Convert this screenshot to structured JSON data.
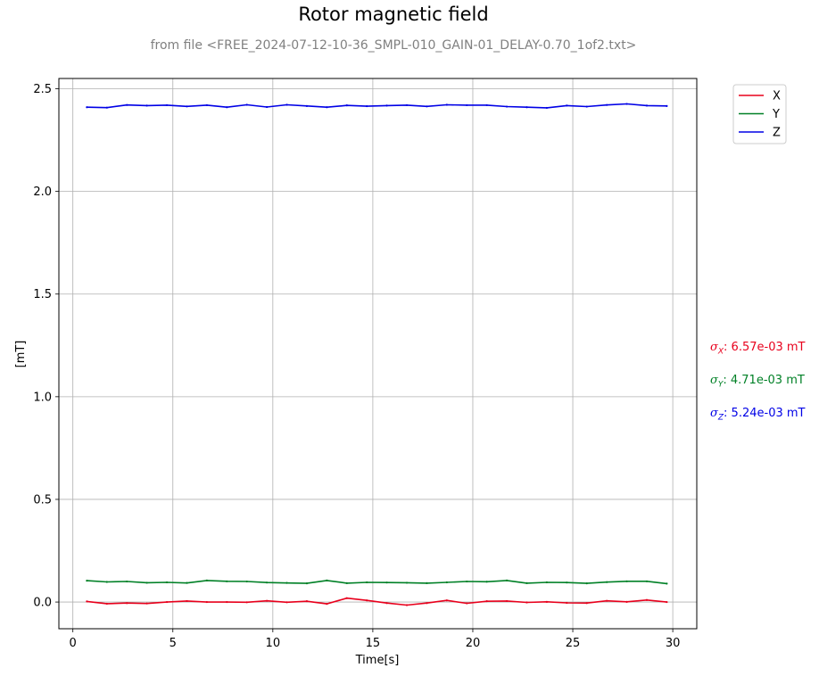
{
  "colors": {
    "X": "#e8001c",
    "Y": "#008026",
    "Z": "#0000e6",
    "grid": "#b0b0b0"
  },
  "chart_data": {
    "type": "line",
    "title": "Rotor magnetic field",
    "subtitle": "from file <FREE_2024-07-12-10-36_SMPL-010_GAIN-01_DELAY-0.70_1of2.txt>",
    "xlabel": "Time[s]",
    "ylabel": "[mT]",
    "xlim": [
      -0.7,
      31.2
    ],
    "ylim": [
      -0.13,
      2.55
    ],
    "xticks": [
      0,
      5,
      10,
      15,
      20,
      25,
      30
    ],
    "xtick_labels": [
      "0",
      "5",
      "10",
      "15",
      "20",
      "25",
      "30"
    ],
    "yticks": [
      0.0,
      0.5,
      1.0,
      1.5,
      2.0,
      2.5
    ],
    "ytick_labels": [
      "0.0",
      "0.5",
      "1.0",
      "1.5",
      "2.0",
      "2.5"
    ],
    "grid": true,
    "legend": "top-right-outside",
    "x": [
      0.7,
      1.7,
      2.7,
      3.7,
      4.7,
      5.7,
      6.7,
      7.7,
      8.7,
      9.7,
      10.7,
      11.7,
      12.7,
      13.7,
      14.7,
      15.7,
      16.7,
      17.7,
      18.7,
      19.7,
      20.7,
      21.7,
      22.7,
      23.7,
      24.7,
      25.7,
      26.7,
      27.7,
      28.7,
      29.7
    ],
    "series": [
      {
        "name": "X",
        "color": "#e8001c",
        "values": [
          0.003,
          -0.008,
          -0.005,
          -0.007,
          0.0,
          0.005,
          0.0,
          0.0,
          -0.001,
          0.006,
          -0.001,
          0.004,
          -0.009,
          0.019,
          0.008,
          -0.005,
          -0.015,
          -0.005,
          0.008,
          -0.006,
          0.004,
          0.005,
          -0.002,
          0.001,
          -0.004,
          -0.005,
          0.006,
          0.001,
          0.01,
          0.0
        ]
      },
      {
        "name": "Y",
        "color": "#008026",
        "values": [
          0.104,
          0.098,
          0.1,
          0.094,
          0.096,
          0.093,
          0.105,
          0.101,
          0.1,
          0.095,
          0.093,
          0.091,
          0.105,
          0.092,
          0.096,
          0.095,
          0.094,
          0.092,
          0.096,
          0.1,
          0.099,
          0.105,
          0.092,
          0.096,
          0.095,
          0.091,
          0.097,
          0.101,
          0.101,
          0.09
        ]
      },
      {
        "name": "Z",
        "color": "#0000e6",
        "values": [
          2.41,
          2.408,
          2.421,
          2.418,
          2.42,
          2.414,
          2.42,
          2.41,
          2.422,
          2.411,
          2.422,
          2.416,
          2.41,
          2.419,
          2.415,
          2.418,
          2.42,
          2.414,
          2.422,
          2.42,
          2.42,
          2.413,
          2.41,
          2.407,
          2.418,
          2.413,
          2.421,
          2.426,
          2.418,
          2.416
        ]
      }
    ],
    "annotations": [
      {
        "label": "σ_X",
        "sym": "σ",
        "sub": "X",
        "value": ": 6.57e-03 mT",
        "color": "#e8001c"
      },
      {
        "label": "σ_Y",
        "sym": "σ",
        "sub": "Y",
        "value": ": 4.71e-03 mT",
        "color": "#008026"
      },
      {
        "label": "σ_Z",
        "sym": "σ",
        "sub": "Z",
        "value": ": 5.24e-03 mT",
        "color": "#0000e6"
      }
    ]
  }
}
